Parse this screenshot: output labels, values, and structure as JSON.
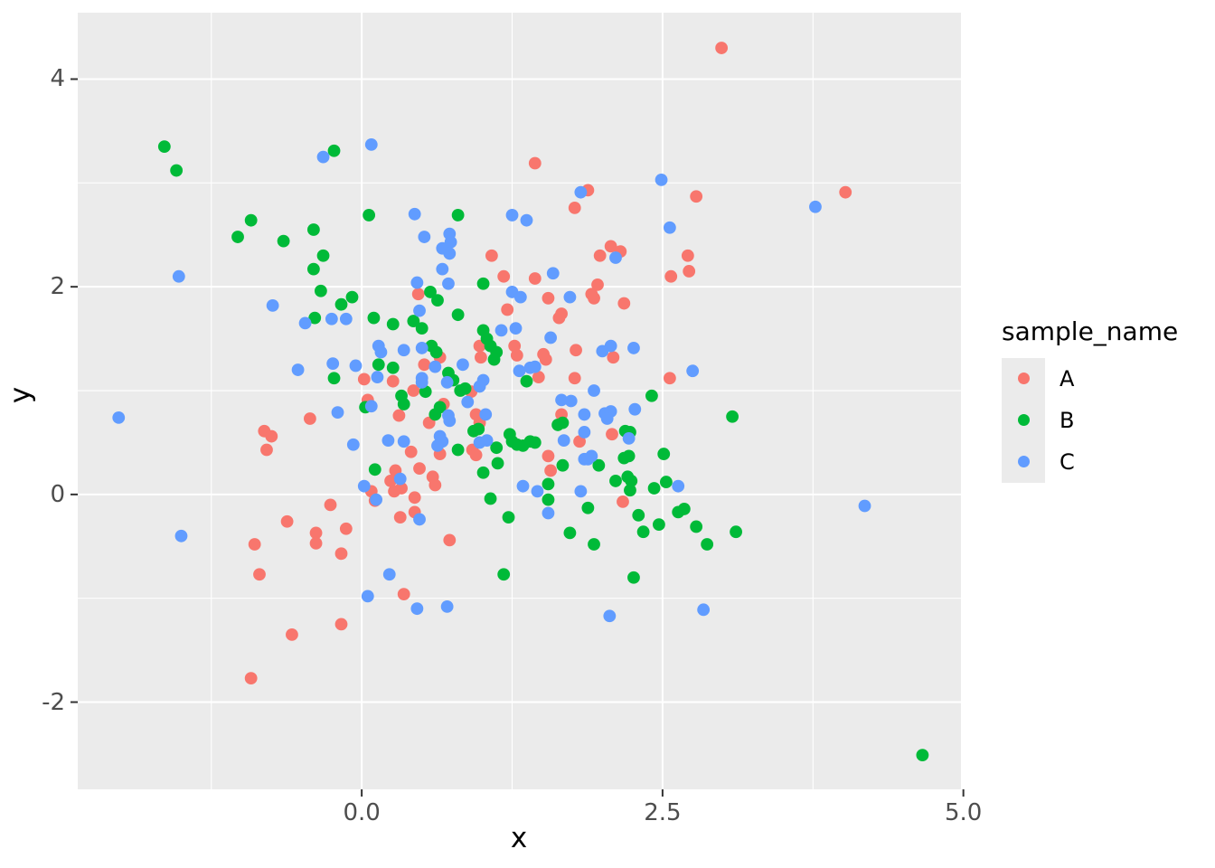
{
  "figure": {
    "background": "#FFFFFF",
    "panel_background": "#EBEBEB",
    "grid_color": "#FFFFFF",
    "tick_mark_color": "#333333",
    "tick_label_color": "#4D4D4D",
    "axis_title_color": "#000000"
  },
  "chart_data": {
    "type": "scatter",
    "title": "",
    "xlabel": "x",
    "ylabel": "y",
    "legend_title": "sample_name",
    "legend_position": "right",
    "grid": "on",
    "xlim": [
      -2.36,
      4.98
    ],
    "ylim": [
      -2.84,
      4.64
    ],
    "x_ticks": {
      "values": [
        0,
        2.5,
        5
      ],
      "labels": [
        "0.0",
        "2.5",
        "5.0"
      ]
    },
    "y_ticks": {
      "values": [
        -2,
        0,
        2,
        4
      ],
      "labels": [
        "-2",
        "0",
        "2",
        "4"
      ]
    },
    "x_minor_gridlines": [
      -1.25,
      1.25,
      3.75
    ],
    "y_minor_gridlines": [
      -1,
      1,
      3
    ],
    "series": [
      {
        "name": "A",
        "color": "#F8766D",
        "points": [
          [
            1.44,
            3.19
          ],
          [
            1.88,
            2.93
          ],
          [
            1.77,
            2.76
          ],
          [
            2.99,
            4.3
          ],
          [
            2.78,
            2.87
          ],
          [
            4.02,
            2.91
          ],
          [
            2.57,
            2.1
          ],
          [
            2.71,
            2.3
          ],
          [
            2.72,
            2.15
          ],
          [
            2.07,
            2.39
          ],
          [
            2.15,
            2.34
          ],
          [
            1.98,
            2.3
          ],
          [
            1.08,
            2.3
          ],
          [
            1.18,
            2.1
          ],
          [
            1.44,
            2.08
          ],
          [
            1.96,
            2.02
          ],
          [
            0.47,
            1.93
          ],
          [
            1.55,
            1.89
          ],
          [
            1.91,
            1.93
          ],
          [
            1.93,
            1.89
          ],
          [
            2.18,
            1.84
          ],
          [
            1.21,
            1.78
          ],
          [
            1.66,
            1.74
          ],
          [
            1.64,
            1.7
          ],
          [
            1.27,
            1.43
          ],
          [
            1.29,
            1.34
          ],
          [
            1.51,
            1.35
          ],
          [
            1.53,
            1.3
          ],
          [
            1.47,
            1.13
          ],
          [
            0.98,
            1.43
          ],
          [
            0.99,
            1.32
          ],
          [
            1.78,
            1.39
          ],
          [
            1.77,
            1.12
          ],
          [
            2.09,
            1.32
          ],
          [
            2.56,
            1.12
          ],
          [
            0.65,
            1.32
          ],
          [
            0.52,
            1.25
          ],
          [
            0.26,
            1.09
          ],
          [
            0.43,
            1.0
          ],
          [
            0.91,
            0.99
          ],
          [
            0.02,
            1.11
          ],
          [
            0.05,
            0.91
          ],
          [
            -0.43,
            0.73
          ],
          [
            -0.81,
            0.61
          ],
          [
            -0.75,
            0.56
          ],
          [
            -0.79,
            0.43
          ],
          [
            0.31,
            0.76
          ],
          [
            0.68,
            0.87
          ],
          [
            0.56,
            0.69
          ],
          [
            0.95,
            0.77
          ],
          [
            0.98,
            0.69
          ],
          [
            0.65,
            0.39
          ],
          [
            0.92,
            0.43
          ],
          [
            0.95,
            0.38
          ],
          [
            0.41,
            0.41
          ],
          [
            0.28,
            0.23
          ],
          [
            0.24,
            0.13
          ],
          [
            0.33,
            0.06
          ],
          [
            0.27,
            0.03
          ],
          [
            0.48,
            0.25
          ],
          [
            0.59,
            0.17
          ],
          [
            0.61,
            0.09
          ],
          [
            0.44,
            -0.03
          ],
          [
            0.08,
            0.03
          ],
          [
            0.11,
            -0.06
          ],
          [
            -0.26,
            -0.1
          ],
          [
            -0.62,
            -0.26
          ],
          [
            -0.38,
            -0.37
          ],
          [
            -0.38,
            -0.47
          ],
          [
            -0.13,
            -0.33
          ],
          [
            -0.89,
            -0.48
          ],
          [
            -0.17,
            -0.57
          ],
          [
            0.32,
            -0.22
          ],
          [
            0.44,
            -0.17
          ],
          [
            0.73,
            -0.44
          ],
          [
            1.66,
            0.77
          ],
          [
            1.81,
            0.51
          ],
          [
            2.08,
            0.58
          ],
          [
            1.55,
            0.37
          ],
          [
            1.57,
            0.23
          ],
          [
            2.17,
            -0.07
          ],
          [
            -0.85,
            -0.77
          ],
          [
            -0.17,
            -1.25
          ],
          [
            -0.58,
            -1.35
          ],
          [
            -0.92,
            -1.77
          ],
          [
            0.35,
            -0.96
          ]
        ]
      },
      {
        "name": "B",
        "color": "#00BA38",
        "points": [
          [
            -1.64,
            3.35
          ],
          [
            -1.54,
            3.12
          ],
          [
            -0.23,
            3.31
          ],
          [
            0.06,
            2.69
          ],
          [
            0.8,
            2.69
          ],
          [
            -0.92,
            2.64
          ],
          [
            -1.03,
            2.48
          ],
          [
            -0.65,
            2.44
          ],
          [
            -0.4,
            2.55
          ],
          [
            -0.32,
            2.3
          ],
          [
            -0.4,
            2.17
          ],
          [
            -0.34,
            1.96
          ],
          [
            -0.17,
            1.83
          ],
          [
            -0.08,
            1.9
          ],
          [
            1.01,
            2.03
          ],
          [
            0.57,
            1.95
          ],
          [
            0.63,
            1.87
          ],
          [
            0.8,
            1.73
          ],
          [
            -0.39,
            1.7
          ],
          [
            0.1,
            1.7
          ],
          [
            0.26,
            1.64
          ],
          [
            0.43,
            1.67
          ],
          [
            0.5,
            1.6
          ],
          [
            1.01,
            1.58
          ],
          [
            1.04,
            1.5
          ],
          [
            1.07,
            1.43
          ],
          [
            1.1,
            1.3
          ],
          [
            1.12,
            1.37
          ],
          [
            0.58,
            1.43
          ],
          [
            0.62,
            1.37
          ],
          [
            0.26,
            1.22
          ],
          [
            0.14,
            1.25
          ],
          [
            -0.23,
            1.12
          ],
          [
            0.72,
            1.17
          ],
          [
            0.76,
            1.1
          ],
          [
            0.82,
            1.0
          ],
          [
            0.86,
            1.02
          ],
          [
            0.53,
            0.99
          ],
          [
            1.37,
            1.09
          ],
          [
            0.33,
            0.95
          ],
          [
            0.35,
            0.87
          ],
          [
            0.03,
            0.84
          ],
          [
            0.61,
            0.77
          ],
          [
            0.65,
            0.84
          ],
          [
            0.93,
            0.61
          ],
          [
            0.97,
            0.63
          ],
          [
            0.8,
            0.43
          ],
          [
            1.12,
            0.45
          ],
          [
            1.13,
            0.3
          ],
          [
            1.01,
            0.21
          ],
          [
            0.11,
            0.24
          ],
          [
            1.23,
            0.58
          ],
          [
            1.25,
            0.51
          ],
          [
            1.29,
            0.48
          ],
          [
            1.34,
            0.47
          ],
          [
            1.4,
            0.51
          ],
          [
            1.44,
            0.5
          ],
          [
            1.67,
            0.69
          ],
          [
            1.63,
            0.67
          ],
          [
            2.41,
            0.95
          ],
          [
            2.19,
            0.61
          ],
          [
            2.23,
            0.6
          ],
          [
            2.51,
            0.39
          ],
          [
            2.18,
            0.35
          ],
          [
            2.22,
            0.37
          ],
          [
            1.97,
            0.28
          ],
          [
            1.67,
            0.28
          ],
          [
            1.55,
            0.1
          ],
          [
            1.55,
            -0.05
          ],
          [
            1.88,
            -0.13
          ],
          [
            2.11,
            0.13
          ],
          [
            2.21,
            0.17
          ],
          [
            2.24,
            0.13
          ],
          [
            2.23,
            0.04
          ],
          [
            2.53,
            0.12
          ],
          [
            2.43,
            0.06
          ],
          [
            2.68,
            -0.14
          ],
          [
            2.63,
            -0.17
          ],
          [
            2.3,
            -0.2
          ],
          [
            2.47,
            -0.29
          ],
          [
            2.34,
            -0.36
          ],
          [
            1.93,
            -0.48
          ],
          [
            1.73,
            -0.37
          ],
          [
            1.07,
            -0.04
          ],
          [
            1.22,
            -0.22
          ],
          [
            3.08,
            0.75
          ],
          [
            2.78,
            -0.31
          ],
          [
            2.87,
            -0.48
          ],
          [
            3.11,
            -0.36
          ],
          [
            1.18,
            -0.77
          ],
          [
            2.26,
            -0.8
          ],
          [
            4.66,
            -2.51
          ]
        ]
      },
      {
        "name": "C",
        "color": "#619CFF",
        "points": [
          [
            -0.32,
            3.25
          ],
          [
            0.08,
            3.37
          ],
          [
            -1.52,
            2.1
          ],
          [
            -0.74,
            1.82
          ],
          [
            2.49,
            3.03
          ],
          [
            1.82,
            2.91
          ],
          [
            3.77,
            2.77
          ],
          [
            2.56,
            2.57
          ],
          [
            0.44,
            2.7
          ],
          [
            1.25,
            2.69
          ],
          [
            1.37,
            2.64
          ],
          [
            0.52,
            2.48
          ],
          [
            0.73,
            2.51
          ],
          [
            0.74,
            2.43
          ],
          [
            0.67,
            2.37
          ],
          [
            0.73,
            2.32
          ],
          [
            2.11,
            2.28
          ],
          [
            0.67,
            2.17
          ],
          [
            1.59,
            2.13
          ],
          [
            0.46,
            2.04
          ],
          [
            0.72,
            2.03
          ],
          [
            1.25,
            1.95
          ],
          [
            1.32,
            1.9
          ],
          [
            1.73,
            1.9
          ],
          [
            0.48,
            1.77
          ],
          [
            -2.02,
            0.74
          ],
          [
            -1.5,
            -0.4
          ],
          [
            -0.47,
            1.65
          ],
          [
            -0.25,
            1.69
          ],
          [
            -0.13,
            1.69
          ],
          [
            -0.53,
            1.2
          ],
          [
            -0.24,
            1.26
          ],
          [
            -0.05,
            1.24
          ],
          [
            0.13,
            1.13
          ],
          [
            0.14,
            1.43
          ],
          [
            0.16,
            1.37
          ],
          [
            0.08,
            0.85
          ],
          [
            -0.2,
            0.79
          ],
          [
            -0.07,
            0.48
          ],
          [
            0.02,
            0.08
          ],
          [
            0.12,
            -0.05
          ],
          [
            0.35,
            1.39
          ],
          [
            0.5,
            1.41
          ],
          [
            0.5,
            1.12
          ],
          [
            0.5,
            1.08
          ],
          [
            0.61,
            1.23
          ],
          [
            0.84,
            1.25
          ],
          [
            0.71,
            1.08
          ],
          [
            0.88,
            0.89
          ],
          [
            0.72,
            0.76
          ],
          [
            0.73,
            0.71
          ],
          [
            1.03,
            0.77
          ],
          [
            0.65,
            0.56
          ],
          [
            0.67,
            0.51
          ],
          [
            0.63,
            0.47
          ],
          [
            0.98,
            0.5
          ],
          [
            1.04,
            0.52
          ],
          [
            0.22,
            0.52
          ],
          [
            0.35,
            0.51
          ],
          [
            0.32,
            0.15
          ],
          [
            0.48,
            -0.24
          ],
          [
            1.31,
            1.19
          ],
          [
            1.4,
            1.22
          ],
          [
            1.44,
            1.23
          ],
          [
            1.57,
            1.51
          ],
          [
            1.16,
            1.58
          ],
          [
            1.28,
            1.6
          ],
          [
            0.98,
            1.04
          ],
          [
            1.01,
            1.1
          ],
          [
            1.74,
            0.9
          ],
          [
            1.66,
            0.91
          ],
          [
            1.68,
            0.52
          ],
          [
            1.85,
            0.77
          ],
          [
            1.85,
            0.6
          ],
          [
            2.02,
            0.78
          ],
          [
            2.07,
            0.8
          ],
          [
            2.04,
            0.73
          ],
          [
            2.26,
            1.41
          ],
          [
            2.07,
            1.43
          ],
          [
            2.0,
            1.38
          ],
          [
            1.93,
            1.0
          ],
          [
            2.27,
            0.82
          ],
          [
            2.22,
            0.54
          ],
          [
            1.85,
            0.34
          ],
          [
            1.88,
            0.34
          ],
          [
            1.91,
            0.37
          ],
          [
            1.34,
            0.08
          ],
          [
            1.46,
            0.03
          ],
          [
            1.82,
            0.03
          ],
          [
            1.55,
            -0.18
          ],
          [
            2.63,
            0.08
          ],
          [
            2.75,
            1.19
          ],
          [
            4.18,
            -0.11
          ],
          [
            0.05,
            -0.98
          ],
          [
            0.23,
            -0.77
          ],
          [
            0.46,
            -1.1
          ],
          [
            0.71,
            -1.08
          ],
          [
            2.06,
            -1.17
          ],
          [
            2.84,
            -1.11
          ]
        ]
      }
    ]
  }
}
